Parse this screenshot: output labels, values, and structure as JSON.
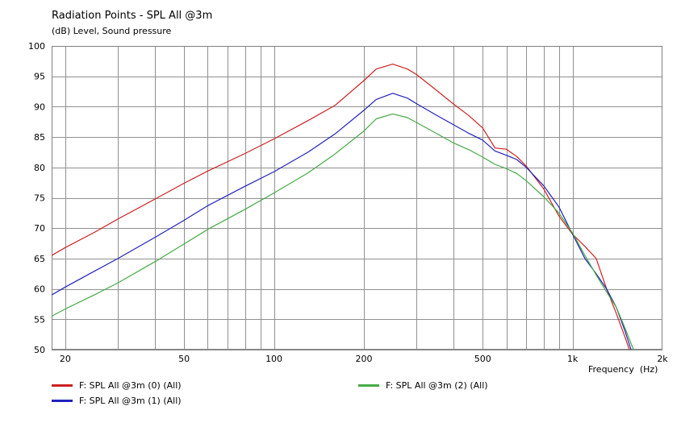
{
  "chart_data": {
    "type": "line",
    "title": "Radiation Points - SPL All @3m",
    "ylabel_unit": "(dB)",
    "ylabel": "Level, Sound pressure",
    "xlabel": "Frequency",
    "xlabel_unit": "(Hz)",
    "x_scale": "log",
    "xlim": [
      18,
      2000
    ],
    "ylim": [
      50,
      100
    ],
    "x_ticks": [
      {
        "value": 20,
        "label": "20"
      },
      {
        "value": 50,
        "label": "50"
      },
      {
        "value": 100,
        "label": "100"
      },
      {
        "value": 200,
        "label": "200"
      },
      {
        "value": 500,
        "label": "500"
      },
      {
        "value": 1000,
        "label": "1k"
      },
      {
        "value": 2000,
        "label": "2k"
      }
    ],
    "y_ticks": [
      "100",
      "95",
      "90",
      "85",
      "80",
      "75",
      "70",
      "65",
      "60",
      "55",
      "50"
    ],
    "grid": true,
    "legend_position": "bottom",
    "series": [
      {
        "name": "F: SPL All @3m (0)  (All)",
        "color": "#cc2222",
        "points": [
          [
            18,
            65.5
          ],
          [
            20,
            66.8
          ],
          [
            25,
            69.3
          ],
          [
            30,
            71.5
          ],
          [
            40,
            74.8
          ],
          [
            50,
            77.4
          ],
          [
            60,
            79.4
          ],
          [
            80,
            82.3
          ],
          [
            100,
            84.7
          ],
          [
            130,
            87.7
          ],
          [
            160,
            90.2
          ],
          [
            200,
            94.3
          ],
          [
            220,
            96.2
          ],
          [
            250,
            97.0
          ],
          [
            280,
            96.2
          ],
          [
            300,
            95.3
          ],
          [
            350,
            92.7
          ],
          [
            400,
            90.4
          ],
          [
            450,
            88.5
          ],
          [
            500,
            86.5
          ],
          [
            550,
            83.2
          ],
          [
            600,
            83.0
          ],
          [
            650,
            81.8
          ],
          [
            700,
            80.2
          ],
          [
            800,
            76.5
          ],
          [
            900,
            72.0
          ],
          [
            1000,
            69.0
          ],
          [
            1100,
            67.0
          ],
          [
            1200,
            65.0
          ],
          [
            1300,
            60.0
          ],
          [
            1400,
            56.0
          ],
          [
            1500,
            52.0
          ],
          [
            1550,
            50.0
          ]
        ]
      },
      {
        "name": "F: SPL All @3m (1)  (All)",
        "color": "#2222bb",
        "points": [
          [
            18,
            59.0
          ],
          [
            20,
            60.3
          ],
          [
            25,
            62.9
          ],
          [
            30,
            65.0
          ],
          [
            40,
            68.5
          ],
          [
            50,
            71.3
          ],
          [
            60,
            73.7
          ],
          [
            80,
            76.9
          ],
          [
            100,
            79.3
          ],
          [
            130,
            82.5
          ],
          [
            160,
            85.5
          ],
          [
            200,
            89.4
          ],
          [
            220,
            91.2
          ],
          [
            250,
            92.2
          ],
          [
            280,
            91.4
          ],
          [
            300,
            90.5
          ],
          [
            350,
            88.6
          ],
          [
            400,
            87.0
          ],
          [
            450,
            85.6
          ],
          [
            500,
            84.5
          ],
          [
            550,
            82.7
          ],
          [
            600,
            82.0
          ],
          [
            650,
            81.3
          ],
          [
            700,
            80.0
          ],
          [
            800,
            77.0
          ],
          [
            900,
            73.5
          ],
          [
            1000,
            69.0
          ],
          [
            1100,
            65.0
          ],
          [
            1200,
            62.5
          ],
          [
            1300,
            60.0
          ],
          [
            1400,
            57.0
          ],
          [
            1500,
            53.0
          ],
          [
            1570,
            50.0
          ]
        ]
      },
      {
        "name": "F: SPL All @3m (2)  (All)",
        "color": "#44aa44",
        "points": [
          [
            18,
            55.5
          ],
          [
            20,
            56.7
          ],
          [
            25,
            59.0
          ],
          [
            30,
            61.0
          ],
          [
            40,
            64.5
          ],
          [
            50,
            67.4
          ],
          [
            60,
            69.8
          ],
          [
            80,
            73.1
          ],
          [
            100,
            75.8
          ],
          [
            130,
            79.1
          ],
          [
            160,
            82.2
          ],
          [
            200,
            86.0
          ],
          [
            220,
            88.0
          ],
          [
            250,
            88.8
          ],
          [
            280,
            88.2
          ],
          [
            300,
            87.4
          ],
          [
            350,
            85.6
          ],
          [
            400,
            84.0
          ],
          [
            450,
            82.9
          ],
          [
            500,
            81.7
          ],
          [
            550,
            80.5
          ],
          [
            600,
            79.8
          ],
          [
            650,
            79.0
          ],
          [
            700,
            77.8
          ],
          [
            800,
            75.2
          ],
          [
            900,
            72.5
          ],
          [
            1000,
            69.2
          ],
          [
            1100,
            65.5
          ],
          [
            1200,
            62.3
          ],
          [
            1300,
            59.5
          ],
          [
            1400,
            57.0
          ],
          [
            1500,
            53.5
          ],
          [
            1600,
            50.0
          ]
        ]
      }
    ]
  }
}
